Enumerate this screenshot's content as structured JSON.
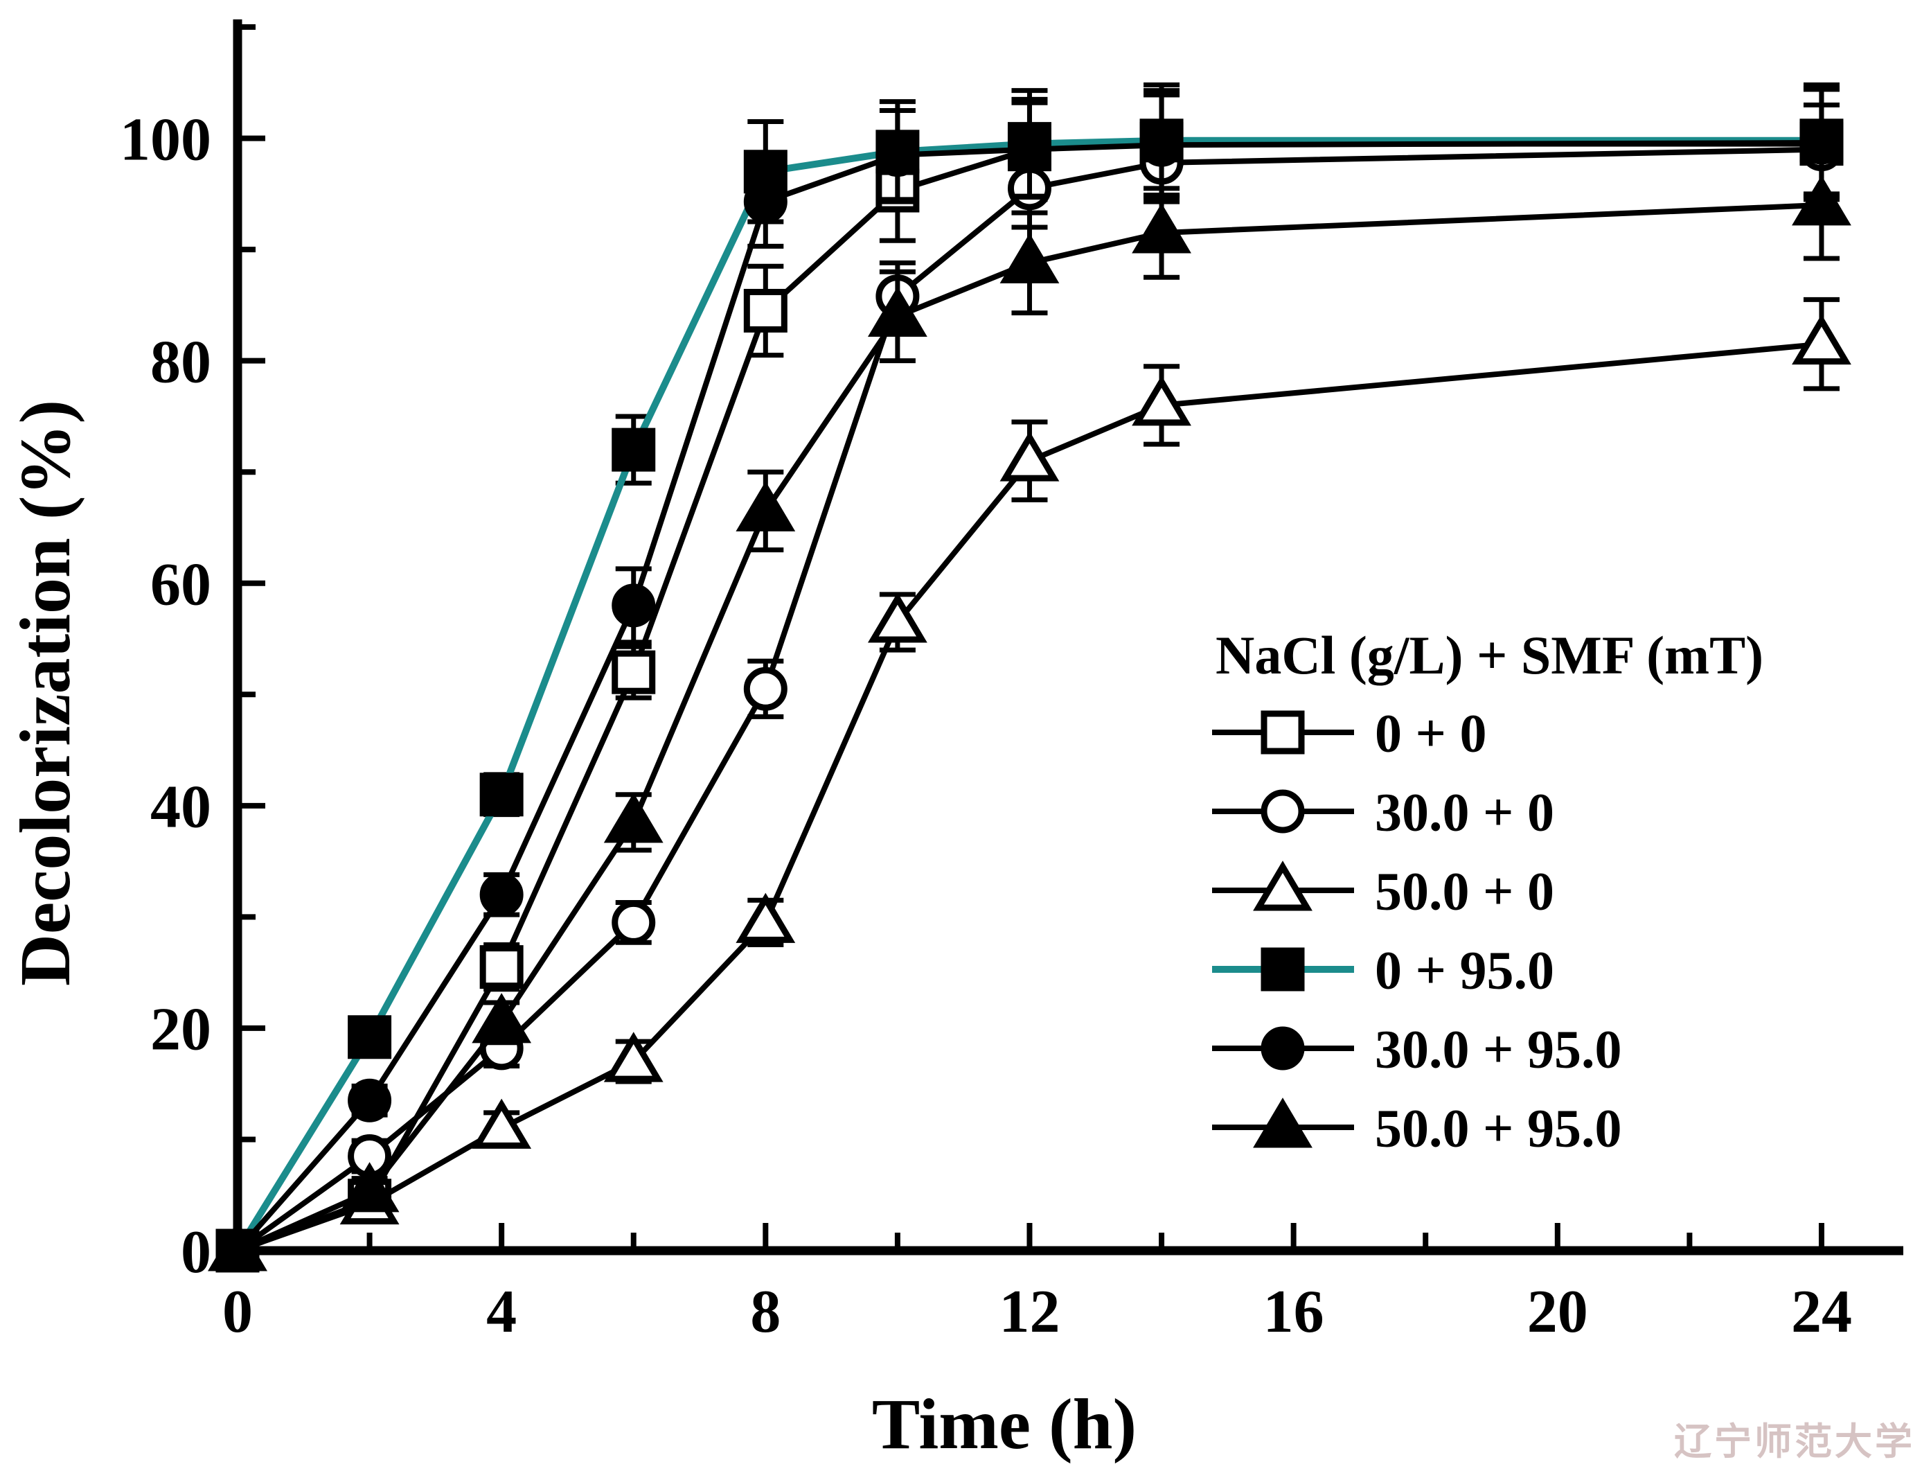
{
  "watermark": "辽宁师范大学",
  "chart_data": {
    "type": "line",
    "title": "",
    "xlabel": "Time (h)",
    "ylabel": "Decolorization (%)",
    "xlim": [
      0,
      25.2
    ],
    "ylim": [
      0,
      110.6
    ],
    "x_major_ticks": [
      0,
      4,
      8,
      12,
      16,
      20,
      24
    ],
    "x_minor_ticks": [
      2,
      6,
      10,
      14,
      18,
      22
    ],
    "y_major_ticks": [
      0,
      20,
      40,
      60,
      80,
      100
    ],
    "y_minor_ticks": [
      10,
      30,
      50,
      70,
      90,
      110
    ],
    "grid": false,
    "legend": {
      "title": "NaCl (g/L) + SMF (mT)",
      "position": "right-middle"
    },
    "accent_color": "#1b8c8c",
    "line_color_default": "#000000",
    "x": [
      0,
      2,
      4,
      6,
      8,
      10,
      12,
      14,
      24
    ],
    "series": [
      {
        "name": "0 + 0",
        "marker": "square-open",
        "line_color": "#000000",
        "values": [
          0,
          4.5,
          25.5,
          52,
          84.5,
          95.3,
          99,
          99.5,
          99.5
        ],
        "errors": [
          0,
          1.2,
          2,
          2.3,
          4,
          4.5,
          4.5,
          4.8,
          5
        ]
      },
      {
        "name": "30.0 + 0",
        "marker": "circle-open",
        "line_color": "#000000",
        "values": [
          0,
          8.5,
          18.2,
          29.5,
          50.5,
          85.8,
          95.5,
          97.8,
          99
        ],
        "errors": [
          0,
          1.4,
          1.6,
          1.8,
          2.5,
          3,
          3.5,
          3.5,
          4
        ]
      },
      {
        "name": "50.0 + 0",
        "marker": "triangle-open",
        "line_color": "#000000",
        "values": [
          0,
          4.2,
          11,
          17,
          29.5,
          56.5,
          71,
          76,
          81.5
        ],
        "errors": [
          0,
          1.2,
          1.4,
          1.8,
          2,
          2.5,
          3.5,
          3.5,
          4
        ]
      },
      {
        "name": "0 + 95.0",
        "marker": "square-filled",
        "line_color": "#1b8c8c",
        "values": [
          0,
          19.2,
          41,
          72,
          97,
          98.8,
          99.5,
          99.8,
          99.8
        ],
        "errors": [
          0,
          1.4,
          1.8,
          3,
          4.5,
          4.5,
          4.8,
          5,
          5
        ]
      },
      {
        "name": "30.0 + 95.0",
        "marker": "circle-filled",
        "line_color": "#000000",
        "values": [
          0,
          13.5,
          32,
          58,
          94.3,
          98.5,
          99,
          99.4,
          99.6
        ],
        "errors": [
          0,
          1.3,
          1.8,
          3.3,
          4,
          4,
          4.2,
          4.5,
          4.8
        ]
      },
      {
        "name": "50.0 + 95.0",
        "marker": "triangle-filled",
        "line_color": "#000000",
        "values": [
          0,
          5.3,
          20.5,
          38.5,
          66.5,
          84,
          88.8,
          91.5,
          94
        ],
        "errors": [
          0,
          1.2,
          1.8,
          2.5,
          3.5,
          4,
          4.5,
          4,
          4.8
        ]
      }
    ]
  }
}
